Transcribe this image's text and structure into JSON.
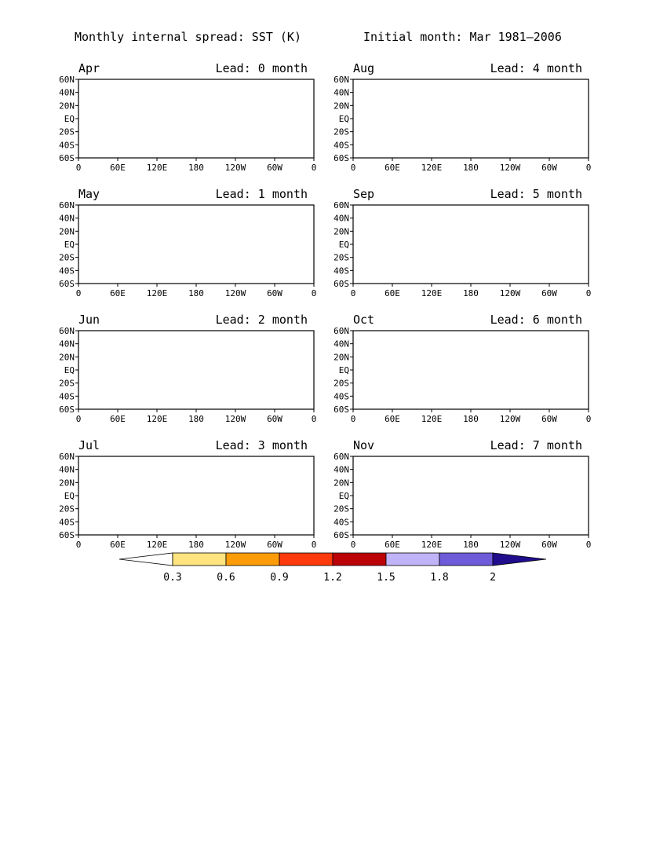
{
  "header": {
    "left": "Monthly internal spread: SST (K)",
    "right": "Initial month: Mar 1981–2006"
  },
  "panels": [
    {
      "month": "Apr",
      "lead": "Lead: 0 month",
      "level": 0
    },
    {
      "month": "Aug",
      "lead": "Lead: 4 month",
      "level": 4
    },
    {
      "month": "May",
      "lead": "Lead: 1 month",
      "level": 1
    },
    {
      "month": "Sep",
      "lead": "Lead: 5 month",
      "level": 5
    },
    {
      "month": "Jun",
      "lead": "Lead: 2 month",
      "level": 2
    },
    {
      "month": "Oct",
      "lead": "Lead: 6 month",
      "level": 6
    },
    {
      "month": "Jul",
      "lead": "Lead: 3 month",
      "level": 3
    },
    {
      "month": "Nov",
      "lead": "Lead: 7 month",
      "level": 7
    }
  ],
  "axes": {
    "lat_labels": [
      "60N",
      "40N",
      "20N",
      "EQ",
      "20S",
      "40S",
      "60S"
    ],
    "lon_labels": [
      "0",
      "60E",
      "120E",
      "180",
      "120W",
      "60W",
      "0"
    ],
    "lon_labels_panel7": [
      "0",
      "60E",
      "120E",
      "180",
      "120W",
      "60W",
      "0"
    ]
  },
  "colorbar": {
    "ticks": [
      "0.3",
      "0.6",
      "0.9",
      "1.2",
      "1.5",
      "1.8",
      "2"
    ],
    "colors": [
      "#ffffff",
      "#fee37f",
      "#fd9c09",
      "#fc3a0b",
      "#bb0206",
      "#c0b3f7",
      "#6e5bda",
      "#1f0d8d"
    ]
  },
  "colors": {
    "ocean_low": "#ffffff",
    "band_1": "#fee37f",
    "band_2": "#fd9c09",
    "band_3": "#fc3a0b",
    "band_4": "#bb0206",
    "land": "#ffffff",
    "coast": "#000000"
  }
}
